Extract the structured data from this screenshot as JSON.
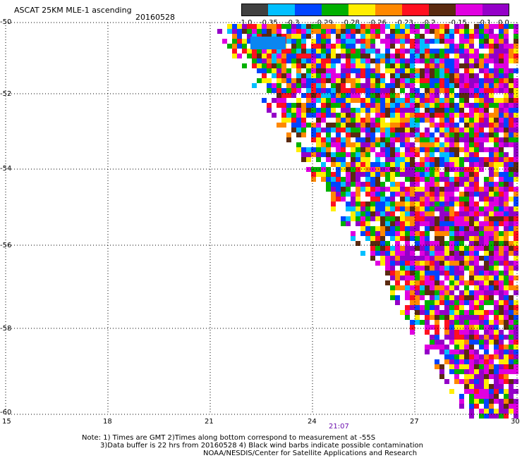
{
  "header": {
    "title": "ASCAT 25KM MLE-1 ascending",
    "date": "20160528"
  },
  "colorbar": {
    "labels": [
      "-1.0",
      "-0.35",
      "-0.3",
      "-0.29",
      "-0.28",
      "-0.26",
      "-0.23",
      "-0.2",
      "-0.15",
      "-0.1",
      "0.0"
    ],
    "colors": [
      "#404040",
      "#00bfff",
      "#0044ff",
      "#00b000",
      "#ffee00",
      "#ff8800",
      "#ff1020",
      "#5a2a10",
      "#e000e0",
      "#9400c8"
    ]
  },
  "map": {
    "y_ticks": [
      "-50",
      "-52",
      "-54",
      "-56",
      "-58",
      "-60"
    ],
    "x_ticks": [
      "15",
      "18",
      "21",
      "24",
      "27",
      "30"
    ],
    "time_label": "21:07"
  },
  "notes": {
    "line1": "Note: 1) Times are GMT 2)Times along bottom correspond to measurement at -55S",
    "line2": "3)Data buffer is 22 hrs from 20160528 4) Black wind barbs indicate possible contamination",
    "line3": "NOAA/NESDIS/Center for Satellite Applications and Research"
  }
}
